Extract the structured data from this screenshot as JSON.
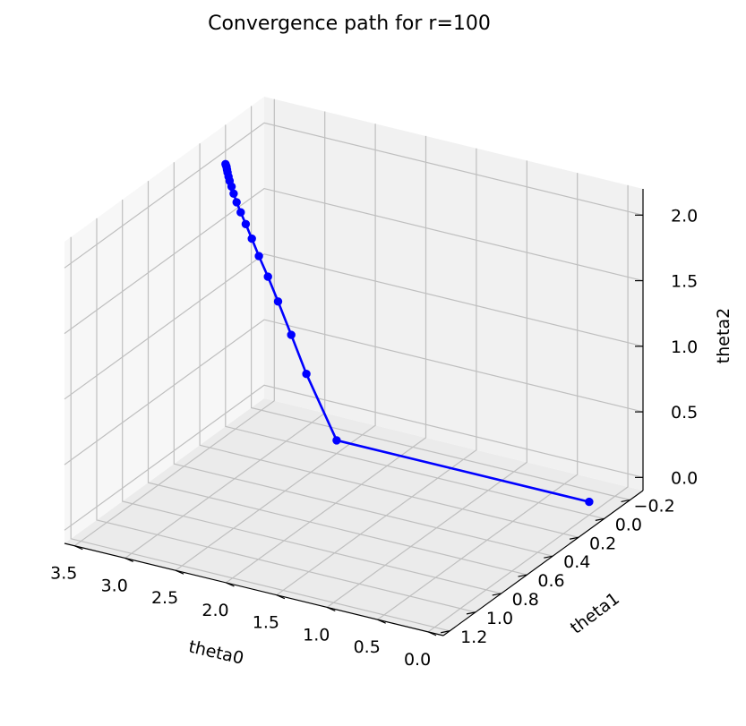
{
  "chart_data": {
    "type": "line",
    "projection": "3d",
    "title": "Convergence path for r=100",
    "xlabel": "theta0",
    "ylabel": "theta1",
    "zlabel": "theta2",
    "xlim": [
      -0.15,
      3.6
    ],
    "ylim": [
      -0.3,
      1.25
    ],
    "zlim": [
      -0.1,
      2.2
    ],
    "xticks": [
      3.5,
      3.0,
      2.5,
      2.0,
      1.5,
      1.0,
      0.5,
      0.0
    ],
    "xtick_labels": [
      "3.5",
      "3.0",
      "2.5",
      "2.0",
      "1.5",
      "1.0",
      "0.5",
      "0.0"
    ],
    "yticks": [
      -0.2,
      0.0,
      0.2,
      0.4,
      0.6,
      0.8,
      1.0,
      1.2
    ],
    "ytick_labels": [
      "−0.2",
      "0.0",
      "0.2",
      "0.4",
      "0.6",
      "0.8",
      "1.0",
      "1.2"
    ],
    "zticks": [
      0.0,
      0.5,
      1.0,
      1.5,
      2.0
    ],
    "ztick_labels": [
      "0.0",
      "0.5",
      "1.0",
      "1.5",
      "2.0"
    ],
    "grid": true,
    "colors": {
      "series": "#0000ff",
      "pane_floor": "#ebebeb",
      "pane_back": "#f1f1f1",
      "pane_side": "#f7f7f7",
      "grid": "#bfbfbf"
    },
    "series": [
      {
        "color": "#0000ff",
        "marker": "circle",
        "x": [
          0.0,
          2.5,
          2.8,
          2.95,
          3.08,
          3.18,
          3.27,
          3.34,
          3.4,
          3.45,
          3.49,
          3.52,
          3.54,
          3.56,
          3.57,
          3.58,
          3.585,
          3.59,
          3.595,
          3.6
        ],
        "y": [
          0.0,
          0.0,
          0.0,
          0.0,
          0.0,
          0.0,
          0.0,
          0.0,
          0.0,
          0.0,
          0.0,
          0.0,
          0.0,
          0.0,
          0.0,
          0.0,
          0.0,
          0.0,
          0.0,
          0.0
        ],
        "z": [
          0.0,
          0.0,
          0.45,
          0.72,
          0.95,
          1.12,
          1.26,
          1.38,
          1.48,
          1.56,
          1.63,
          1.69,
          1.74,
          1.78,
          1.81,
          1.84,
          1.86,
          1.88,
          1.89,
          1.9
        ]
      }
    ]
  }
}
